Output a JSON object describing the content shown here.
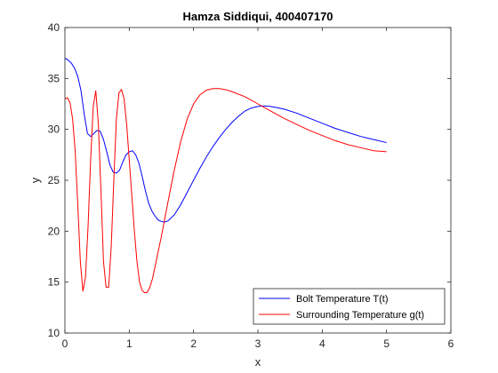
{
  "chart_data": {
    "type": "line",
    "title": "Hamza Siddiqui, 400407170",
    "xlabel": "x",
    "ylabel": "y",
    "xlim": [
      0,
      6
    ],
    "ylim": [
      10,
      40
    ],
    "xticks": [
      "0",
      "1",
      "2",
      "3",
      "4",
      "5",
      "6"
    ],
    "yticks": [
      "10",
      "15",
      "20",
      "25",
      "30",
      "35",
      "40"
    ],
    "grid": false,
    "legend_position": "bottom-right",
    "series": [
      {
        "name": "Bolt Temperature T(t)",
        "color": "#0000ff",
        "points": [
          [
            0.0,
            37.0
          ],
          [
            0.05,
            36.8
          ],
          [
            0.1,
            36.5
          ],
          [
            0.15,
            36.0
          ],
          [
            0.2,
            35.2
          ],
          [
            0.25,
            33.8
          ],
          [
            0.3,
            31.5
          ],
          [
            0.35,
            29.6
          ],
          [
            0.4,
            29.3
          ],
          [
            0.45,
            29.6
          ],
          [
            0.5,
            29.9
          ],
          [
            0.55,
            29.8
          ],
          [
            0.6,
            29.0
          ],
          [
            0.65,
            27.8
          ],
          [
            0.7,
            26.5
          ],
          [
            0.75,
            25.8
          ],
          [
            0.8,
            25.7
          ],
          [
            0.85,
            26.0
          ],
          [
            0.9,
            26.8
          ],
          [
            0.95,
            27.5
          ],
          [
            1.0,
            27.8
          ],
          [
            1.05,
            27.9
          ],
          [
            1.1,
            27.5
          ],
          [
            1.15,
            26.7
          ],
          [
            1.2,
            25.4
          ],
          [
            1.25,
            24.0
          ],
          [
            1.3,
            22.8
          ],
          [
            1.35,
            22.0
          ],
          [
            1.4,
            21.5
          ],
          [
            1.45,
            21.1
          ],
          [
            1.5,
            20.95
          ],
          [
            1.55,
            20.9
          ],
          [
            1.6,
            21.0
          ],
          [
            1.7,
            21.6
          ],
          [
            1.8,
            22.6
          ],
          [
            1.9,
            23.8
          ],
          [
            2.0,
            25.0
          ],
          [
            2.1,
            26.2
          ],
          [
            2.2,
            27.3
          ],
          [
            2.3,
            28.3
          ],
          [
            2.4,
            29.2
          ],
          [
            2.5,
            30.0
          ],
          [
            2.6,
            30.7
          ],
          [
            2.7,
            31.3
          ],
          [
            2.8,
            31.8
          ],
          [
            2.9,
            32.1
          ],
          [
            3.0,
            32.25
          ],
          [
            3.1,
            32.3
          ],
          [
            3.2,
            32.25
          ],
          [
            3.4,
            32.0
          ],
          [
            3.6,
            31.6
          ],
          [
            3.8,
            31.1
          ],
          [
            4.0,
            30.6
          ],
          [
            4.2,
            30.1
          ],
          [
            4.4,
            29.7
          ],
          [
            4.6,
            29.3
          ],
          [
            4.8,
            29.0
          ],
          [
            5.0,
            28.7
          ]
        ]
      },
      {
        "name": "Surrounding Temperature g(t)",
        "color": "#ff0000",
        "points": [
          [
            0.0,
            33.0
          ],
          [
            0.04,
            33.1
          ],
          [
            0.08,
            32.6
          ],
          [
            0.12,
            31.0
          ],
          [
            0.16,
            27.8
          ],
          [
            0.2,
            22.6
          ],
          [
            0.24,
            17.0
          ],
          [
            0.28,
            14.1
          ],
          [
            0.32,
            15.5
          ],
          [
            0.36,
            20.5
          ],
          [
            0.4,
            27.0
          ],
          [
            0.44,
            32.2
          ],
          [
            0.48,
            33.8
          ],
          [
            0.52,
            30.5
          ],
          [
            0.56,
            24.0
          ],
          [
            0.6,
            17.0
          ],
          [
            0.64,
            14.5
          ],
          [
            0.68,
            14.5
          ],
          [
            0.72,
            18.5
          ],
          [
            0.76,
            25.0
          ],
          [
            0.8,
            31.0
          ],
          [
            0.84,
            33.6
          ],
          [
            0.88,
            33.9
          ],
          [
            0.92,
            33.0
          ],
          [
            0.96,
            30.5
          ],
          [
            1.0,
            27.0
          ],
          [
            1.04,
            23.5
          ],
          [
            1.08,
            20.0
          ],
          [
            1.12,
            17.0
          ],
          [
            1.16,
            15.0
          ],
          [
            1.2,
            14.2
          ],
          [
            1.24,
            13.95
          ],
          [
            1.28,
            14.0
          ],
          [
            1.32,
            14.5
          ],
          [
            1.36,
            15.3
          ],
          [
            1.4,
            16.5
          ],
          [
            1.5,
            19.5
          ],
          [
            1.6,
            22.8
          ],
          [
            1.7,
            26.0
          ],
          [
            1.8,
            28.8
          ],
          [
            1.9,
            31.0
          ],
          [
            2.0,
            32.5
          ],
          [
            2.1,
            33.4
          ],
          [
            2.2,
            33.85
          ],
          [
            2.3,
            34.0
          ],
          [
            2.4,
            34.0
          ],
          [
            2.5,
            33.9
          ],
          [
            2.6,
            33.7
          ],
          [
            2.8,
            33.2
          ],
          [
            3.0,
            32.5
          ],
          [
            3.2,
            31.8
          ],
          [
            3.4,
            31.1
          ],
          [
            3.6,
            30.5
          ],
          [
            3.8,
            29.9
          ],
          [
            4.0,
            29.4
          ],
          [
            4.2,
            28.9
          ],
          [
            4.4,
            28.5
          ],
          [
            4.6,
            28.2
          ],
          [
            4.8,
            27.9
          ],
          [
            5.0,
            27.8
          ]
        ]
      }
    ]
  }
}
